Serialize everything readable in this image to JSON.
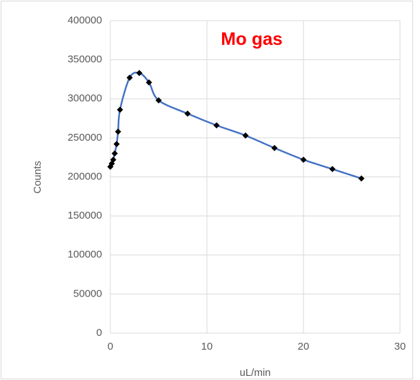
{
  "chart_data": {
    "type": "scatter-smooth",
    "title": "Mo gas",
    "title_color": "#ff0000",
    "x_label": "uL/min",
    "y_label": "Counts",
    "series": [
      {
        "name": "Counts",
        "color": "#4472c4",
        "marker_color": "#000000",
        "x": [
          0,
          0.15,
          0.3,
          0.45,
          0.65,
          0.8,
          1,
          2,
          3,
          4,
          5,
          8,
          11,
          14,
          17,
          20,
          23,
          26
        ],
        "values": [
          213000,
          217000,
          222000,
          230000,
          242000,
          258000,
          286000,
          327000,
          333000,
          321000,
          298000,
          281000,
          266000,
          253000,
          237000,
          222000,
          210000,
          198000
        ]
      }
    ],
    "xlim": [
      0,
      30
    ],
    "xticks": [
      0,
      10,
      20,
      30
    ],
    "ylim": [
      0,
      400000
    ],
    "yticks": [
      0,
      50000,
      100000,
      150000,
      200000,
      250000,
      300000,
      350000,
      400000
    ],
    "grid": true
  }
}
